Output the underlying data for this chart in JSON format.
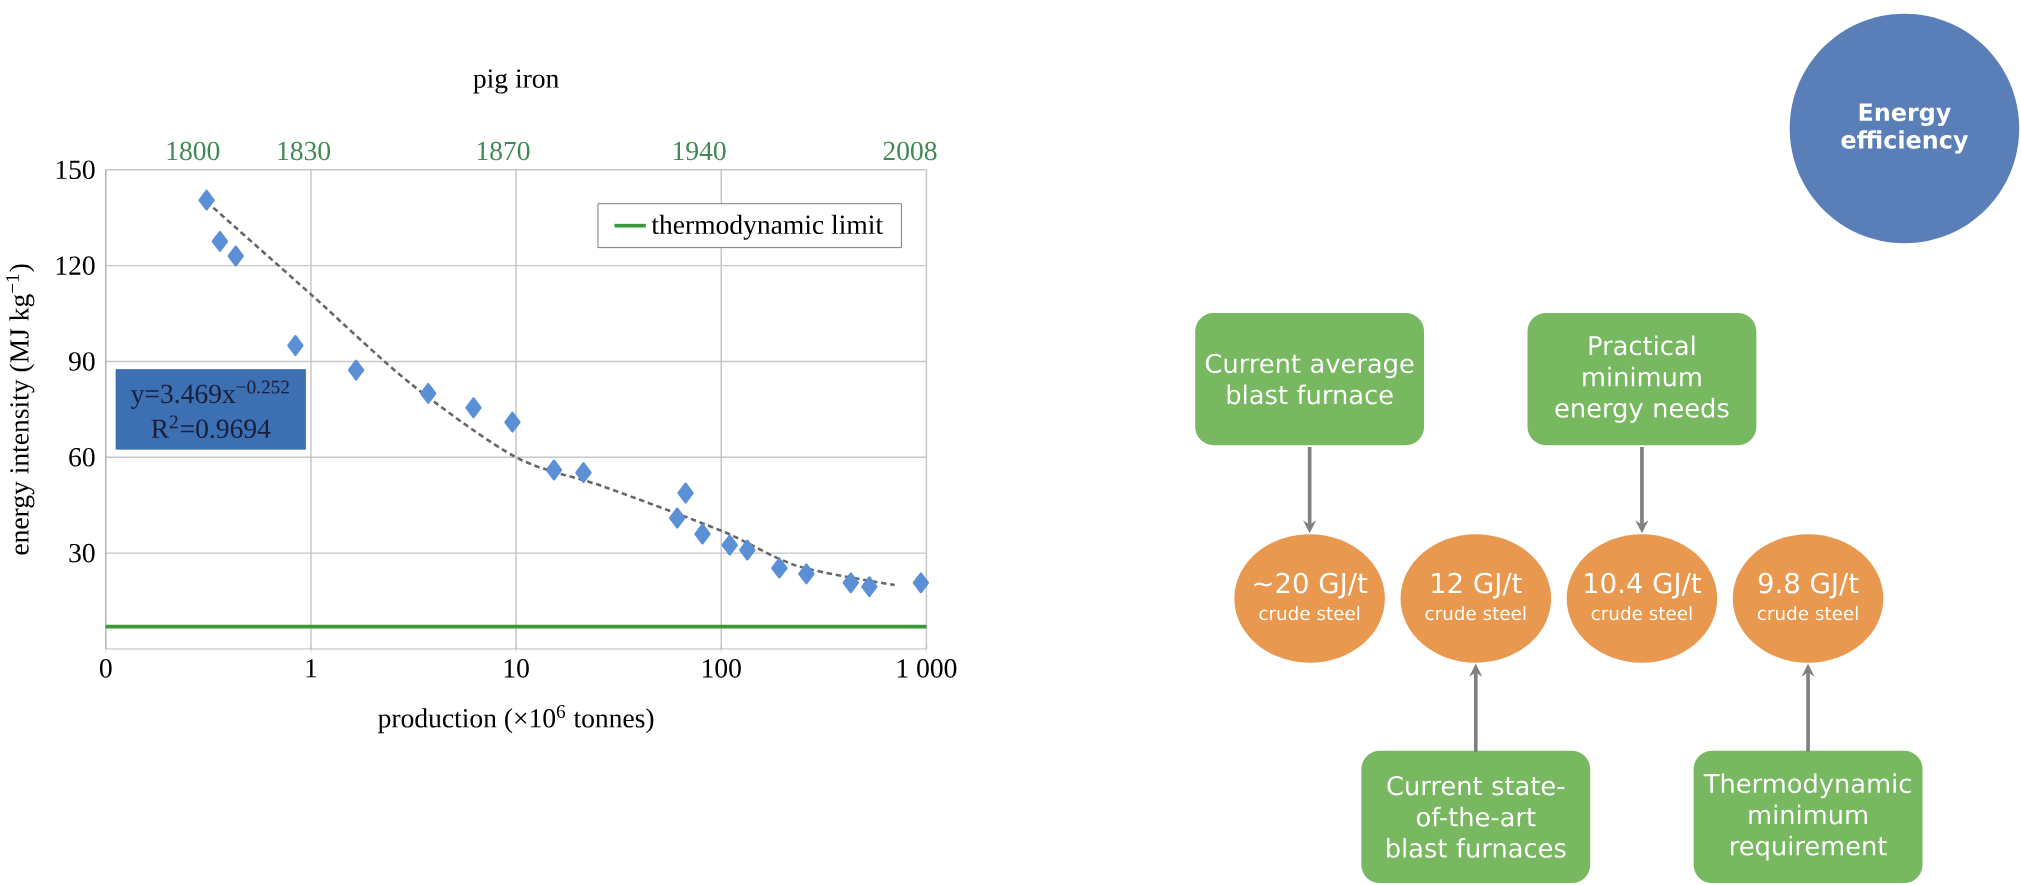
{
  "chart_data": [
    {
      "type": "scatter",
      "title": "pig iron",
      "xlabel": "production (×10$^{6}$ tonnes)",
      "ylabel": "energy intensity (MJ kg$^{−1}$)",
      "log": "x",
      "xlim": [
        0.1,
        1000
      ],
      "xticks": [
        {
          "value": 0.1,
          "label": "0"
        },
        1,
        10,
        100,
        {
          "value": 1000,
          "label": "1 000"
        }
      ],
      "ylim": [
        0,
        150
      ],
      "yticks": [
        30,
        60,
        90,
        120,
        150
      ],
      "grid": true,
      "legend": "top right",
      "ref_lines": [
        {
          "axis": "y",
          "value": 7,
          "label": "thermodynamic limit",
          "color": "#3a9a3a"
        }
      ],
      "annotations": [
        "y=3.469x$^{−0.252}$",
        "R$^{2}$=0.9694",
        "1800",
        "1830",
        "1870",
        "1940",
        "2008"
      ],
      "series": [
        {
          "type": "scatter",
          "color": "#5b8fd6",
          "marker": "diamond",
          "x": [
            0.31,
            0.36,
            0.43,
            0.84,
            1.66,
            3.73,
            6.2,
            9.6,
            15.3,
            21.3,
            61,
            67,
            81,
            110,
            134,
            192,
            260,
            428,
            527,
            940
          ],
          "values": [
            140.5,
            127.6,
            123,
            95,
            87.3,
            80,
            75.5,
            71,
            56,
            55.2,
            41,
            48.8,
            36,
            32.5,
            31,
            25.3,
            23.5,
            20.7,
            19.5,
            20.7
          ]
        },
        {
          "type": "line",
          "color": "#666666",
          "line_style": "dashed",
          "marker": "none",
          "x": [
            0.31,
            1,
            3.07,
            10,
            26.8,
            100,
            235,
            700
          ],
          "values": [
            140,
            111,
            83,
            60,
            50.8,
            37,
            26,
            20
          ]
        }
      ]
    },
    {
      "type": "other",
      "title": "Energy efficiency",
      "annotations": [
        "Current average blast furnace",
        "~20 GJ/t",
        "crude steel",
        "Current state-of-the-art blast furnaces",
        "12 GJ/t",
        "crude steel",
        "Practical minimum energy needs",
        "10.4 GJ/t",
        "crude steel",
        "Thermodynamic minimum requirement",
        "9.8 GJ/t",
        "crude steel"
      ]
    }
  ]
}
